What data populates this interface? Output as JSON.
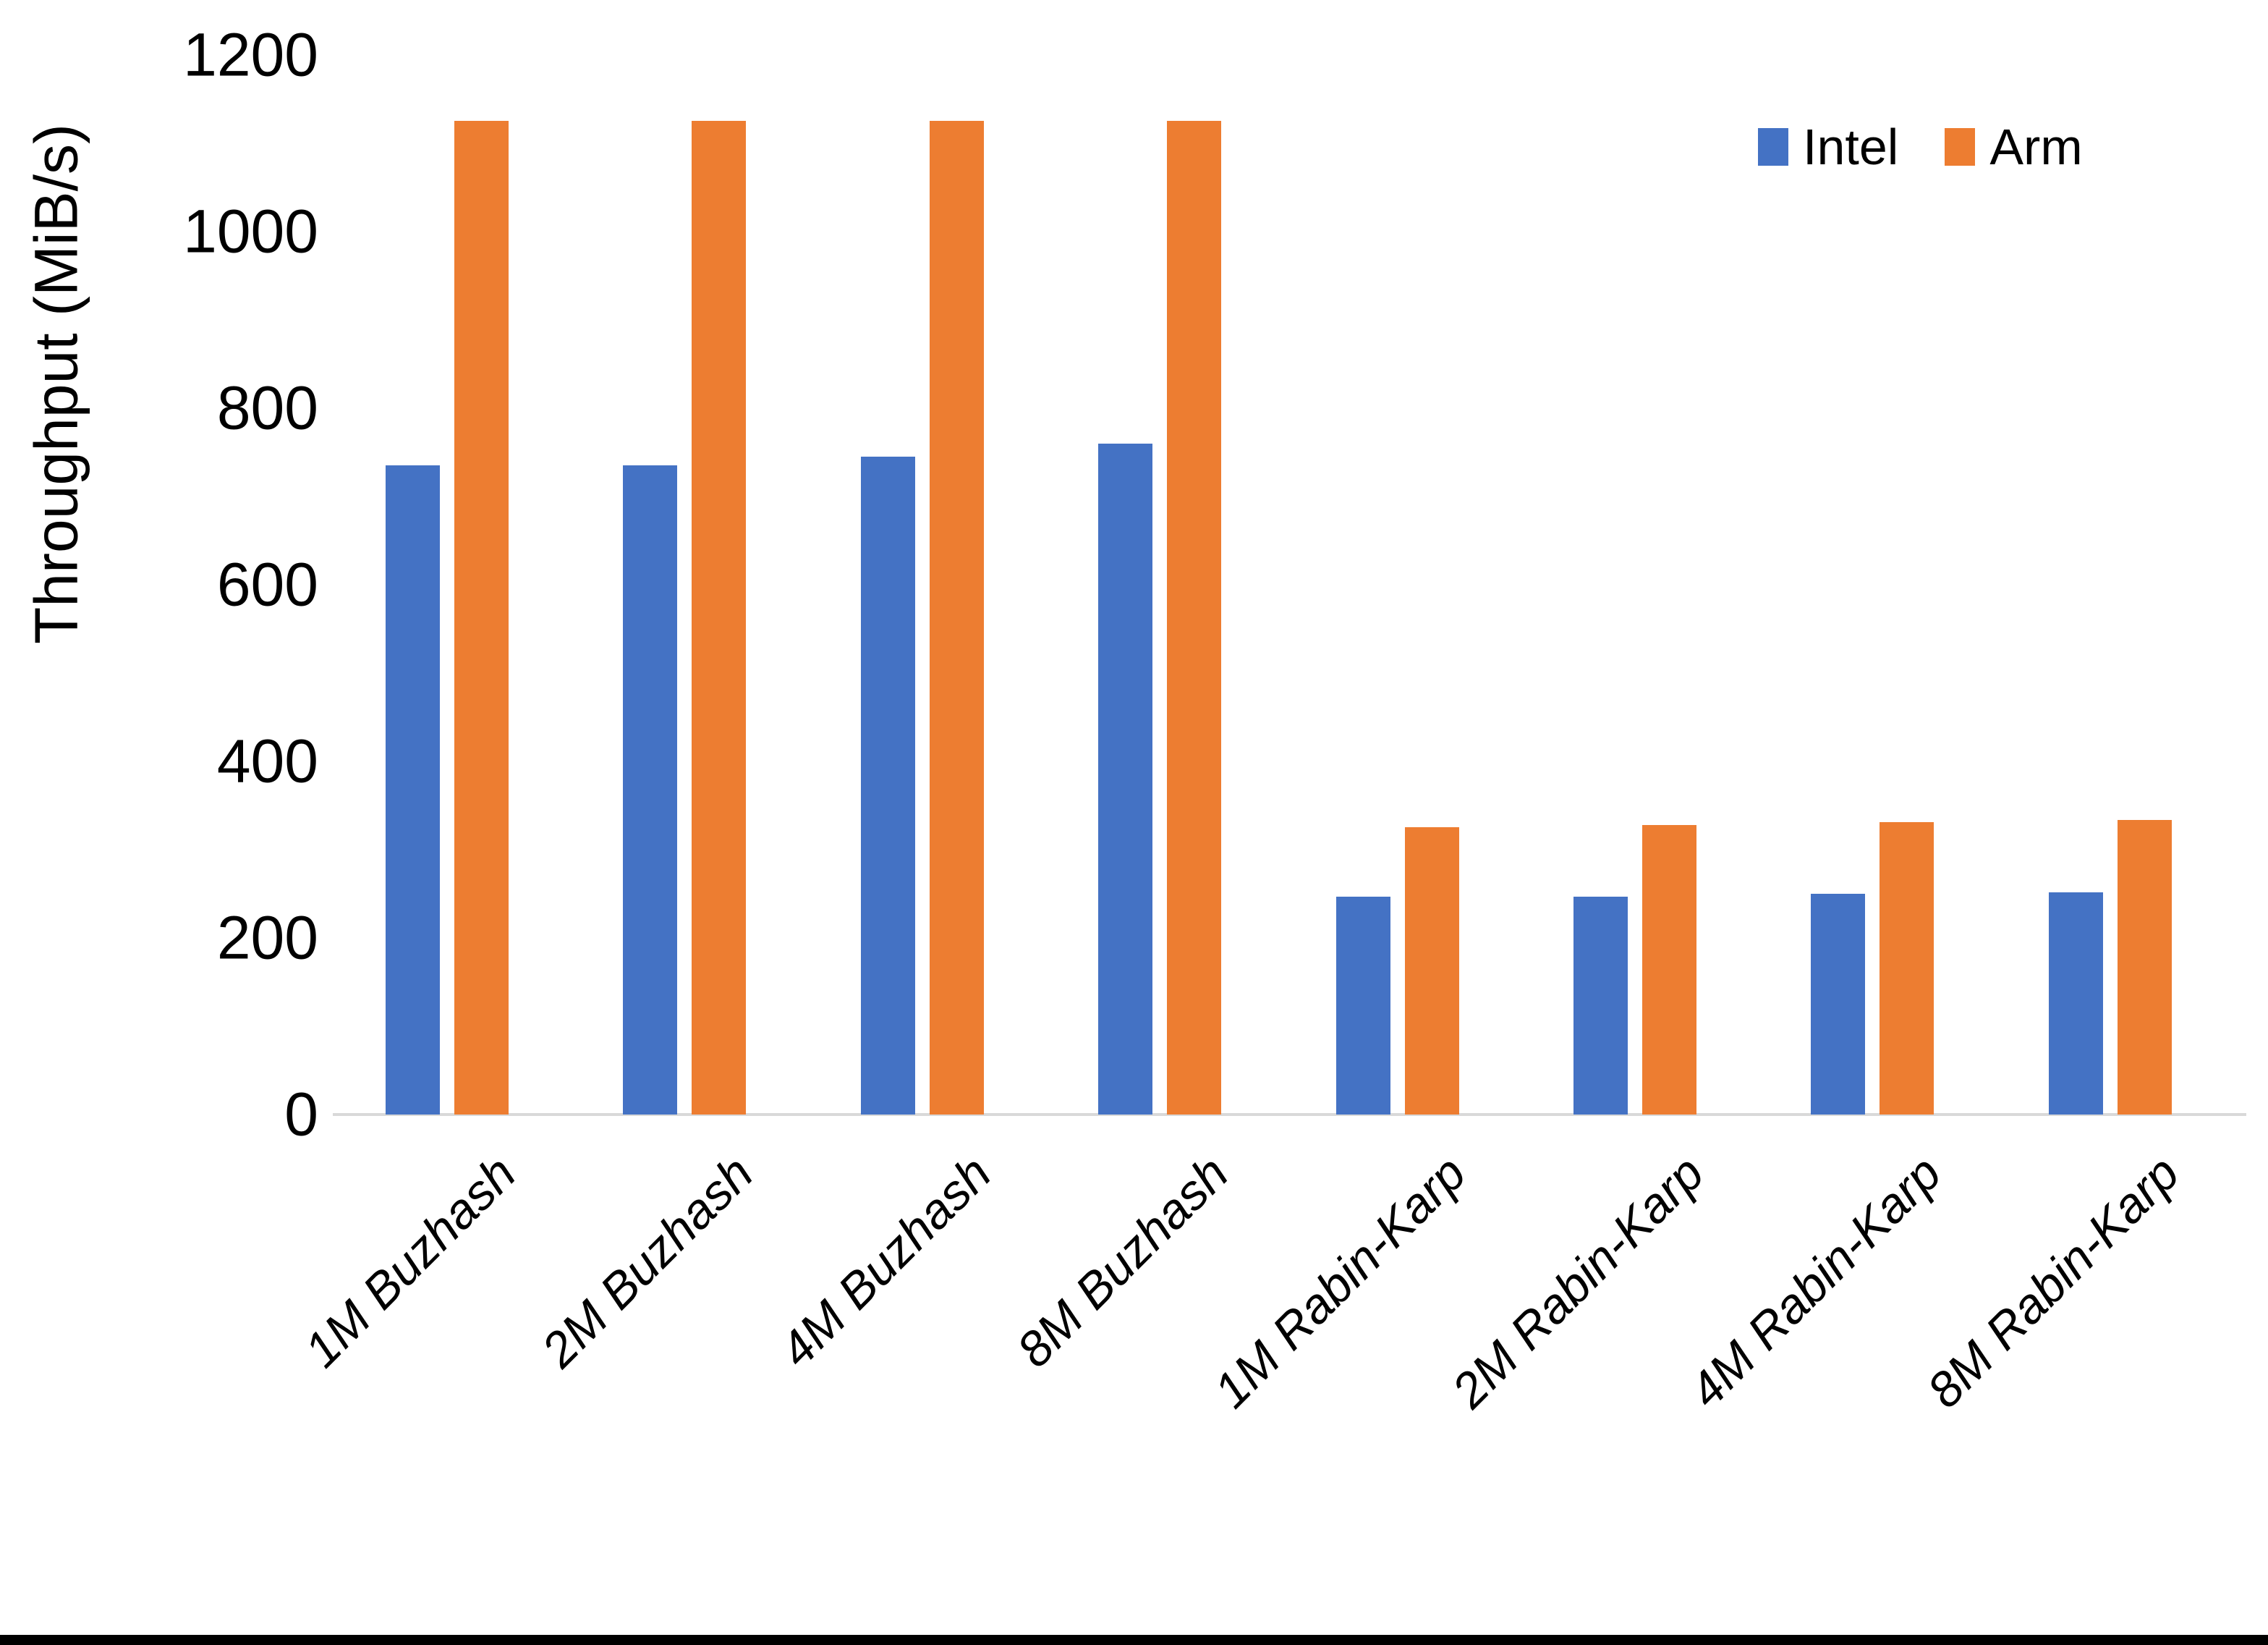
{
  "chart_data": {
    "type": "bar",
    "title": "",
    "ylabel": "Throughput (MiB/s)",
    "xlabel": "",
    "categories": [
      "1M Buzhash",
      "2M Buzhash",
      "4M Buzhash",
      "8M Buzhash",
      "1M Rabin-Karp",
      "2M Rabin-Karp",
      "4M Rabin-Karp",
      "8M Rabin-Karp"
    ],
    "series": [
      {
        "name": "Intel",
        "color": "#4472C4",
        "values": [
          735,
          735,
          745,
          760,
          247,
          247,
          250,
          252
        ]
      },
      {
        "name": "Arm",
        "color": "#ED7D31",
        "values": [
          1125,
          1125,
          1125,
          1125,
          325,
          328,
          331,
          334
        ]
      }
    ],
    "ylim": [
      0,
      1200
    ],
    "y_ticks": [
      0,
      200,
      400,
      600,
      800,
      1000,
      1200
    ],
    "grid": false,
    "legend_position": "top-right",
    "axis_line_color": "#D9D9D9",
    "x_label_rotation_deg": 45,
    "x_label_style": "italic"
  }
}
